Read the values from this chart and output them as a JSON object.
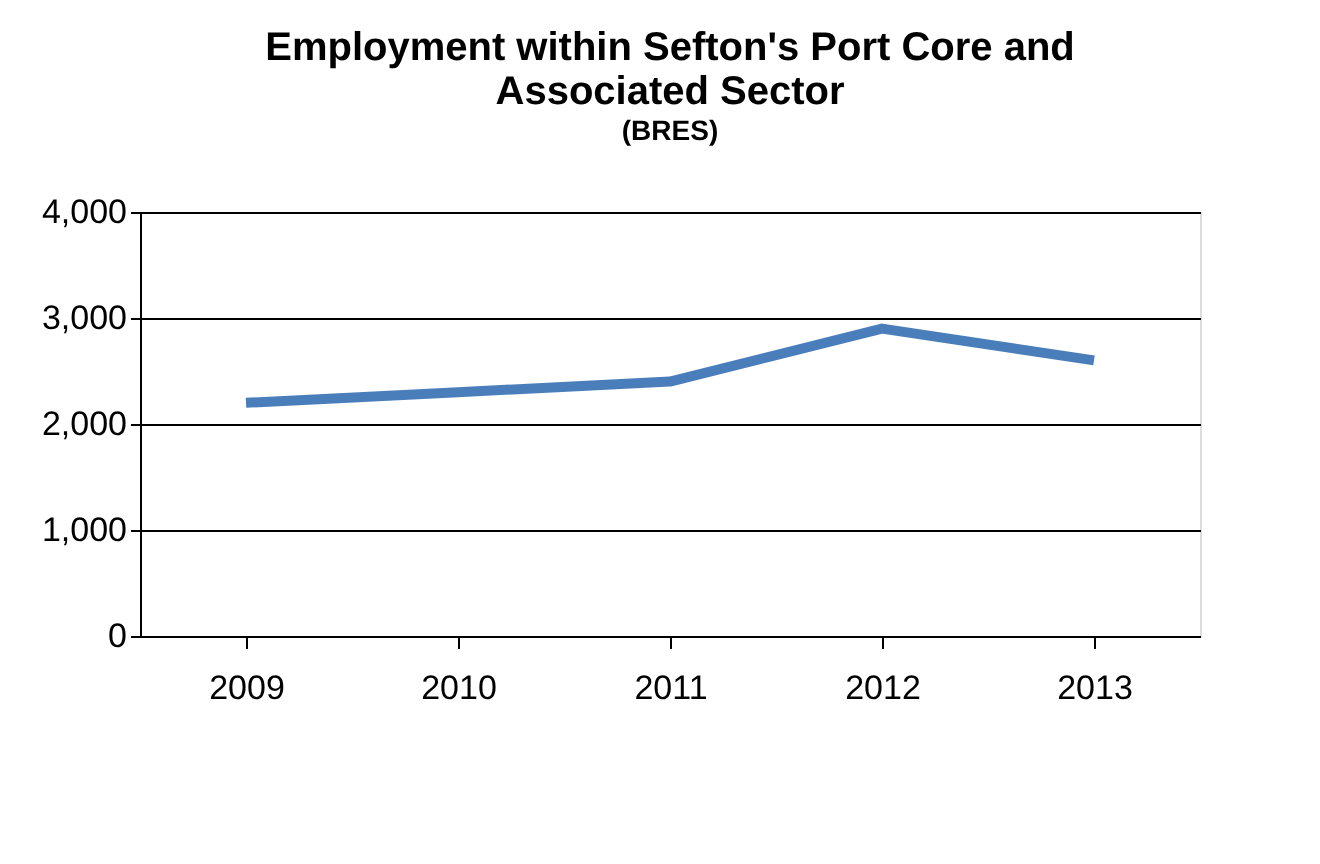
{
  "chart_data": {
    "type": "line",
    "title": "Employment within Sefton's Port Core and Associated Sector",
    "subtitle": "(BRES)",
    "categories": [
      "2009",
      "2010",
      "2011",
      "2012",
      "2013"
    ],
    "series": [
      {
        "color": "#4a7ebb",
        "values": [
          2200,
          2300,
          2400,
          2900,
          2600
        ]
      }
    ],
    "ylim": [
      0,
      4000
    ],
    "yticks": [
      {
        "value": 0,
        "label": "0"
      },
      {
        "value": 1000,
        "label": "1,000"
      },
      {
        "value": 2000,
        "label": "2,000"
      },
      {
        "value": 3000,
        "label": "3,000"
      },
      {
        "value": 4000,
        "label": "4,000"
      }
    ],
    "grid": "y",
    "marker": "none",
    "line_style": "solid"
  }
}
